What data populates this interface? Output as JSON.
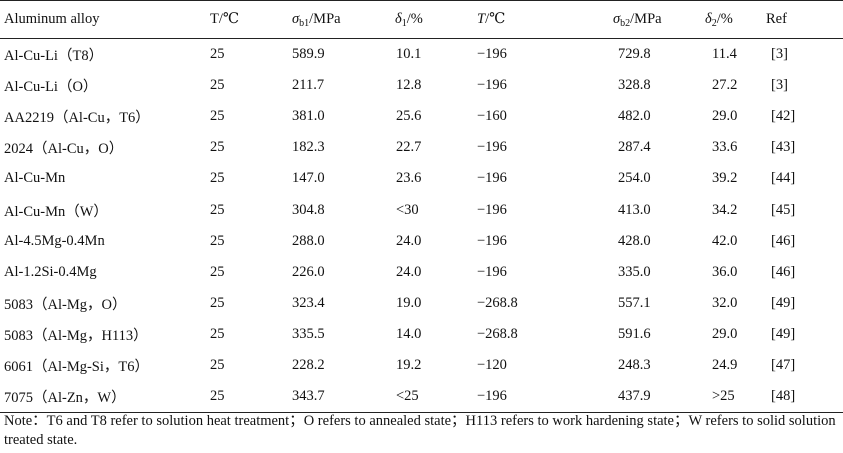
{
  "table": {
    "headers": {
      "alloy": "Aluminum alloy",
      "t1": "T/℃",
      "sigma1_sym": "σ",
      "sigma1_sub": "b1",
      "sigma1_unit": "/MPa",
      "delta1_sym": "δ",
      "delta1_sub": "1",
      "delta1_unit": "/%",
      "t2_sym": "T",
      "t2_unit": "/℃",
      "sigma2_sym": "σ",
      "sigma2_sub": "b2",
      "sigma2_unit": "/MPa",
      "delta2_sym": "δ",
      "delta2_sub": "2",
      "delta2_unit": "/%",
      "ref": "Ref"
    },
    "rows": [
      {
        "alloy": "Al-Cu-Li（T8）",
        "t1": "25",
        "s1": "589.9",
        "d1": "10.1",
        "t2": "−196",
        "s2": "729.8",
        "d2": "11.4",
        "ref": "[3]"
      },
      {
        "alloy": "Al-Cu-Li（O）",
        "t1": "25",
        "s1": "211.7",
        "d1": "12.8",
        "t2": "−196",
        "s2": "328.8",
        "d2": "27.2",
        "ref": "[3]"
      },
      {
        "alloy": "AA2219（Al-Cu，T6）",
        "t1": "25",
        "s1": "381.0",
        "d1": "25.6",
        "t2": "−160",
        "s2": "482.0",
        "d2": "29.0",
        "ref": "[42]"
      },
      {
        "alloy": "2024（Al-Cu，O）",
        "t1": "25",
        "s1": "182.3",
        "d1": "22.7",
        "t2": "−196",
        "s2": "287.4",
        "d2": "33.6",
        "ref": "[43]"
      },
      {
        "alloy": "Al-Cu-Mn",
        "t1": "25",
        "s1": "147.0",
        "d1": "23.6",
        "t2": "−196",
        "s2": "254.0",
        "d2": "39.2",
        "ref": "[44]"
      },
      {
        "alloy": "Al-Cu-Mn（W）",
        "t1": "25",
        "s1": "304.8",
        "d1": "<30",
        "t2": "−196",
        "s2": "413.0",
        "d2": "34.2",
        "ref": "[45]"
      },
      {
        "alloy": "Al-4.5Mg-0.4Mn",
        "t1": "25",
        "s1": "288.0",
        "d1": "24.0",
        "t2": "−196",
        "s2": "428.0",
        "d2": "42.0",
        "ref": "[46]"
      },
      {
        "alloy": "Al-1.2Si-0.4Mg",
        "t1": "25",
        "s1": "226.0",
        "d1": "24.0",
        "t2": "−196",
        "s2": "335.0",
        "d2": "36.0",
        "ref": "[46]"
      },
      {
        "alloy": "5083（Al-Mg，O）",
        "t1": "25",
        "s1": "323.4",
        "d1": "19.0",
        "t2": "−268.8",
        "s2": "557.1",
        "d2": "32.0",
        "ref": "[49]"
      },
      {
        "alloy": "5083（Al-Mg，H113）",
        "t1": "25",
        "s1": "335.5",
        "d1": "14.0",
        "t2": "−268.8",
        "s2": "591.6",
        "d2": "29.0",
        "ref": "[49]"
      },
      {
        "alloy": "6061（Al-Mg-Si，T6）",
        "t1": "25",
        "s1": "228.2",
        "d1": "19.2",
        "t2": "−120",
        "s2": "248.3",
        "d2": "24.9",
        "ref": "[47]"
      },
      {
        "alloy": "7075（Al-Zn，W）",
        "t1": "25",
        "s1": "343.7",
        "d1": "<25",
        "t2": "−196",
        "s2": "437.9",
        "d2": ">25",
        "ref": "[48]"
      }
    ],
    "note": "Note：T6 and T8 refer to solution heat treatment；O refers to annealed state；H113 refers to work hardening state；W refers to solid solution treated state."
  }
}
